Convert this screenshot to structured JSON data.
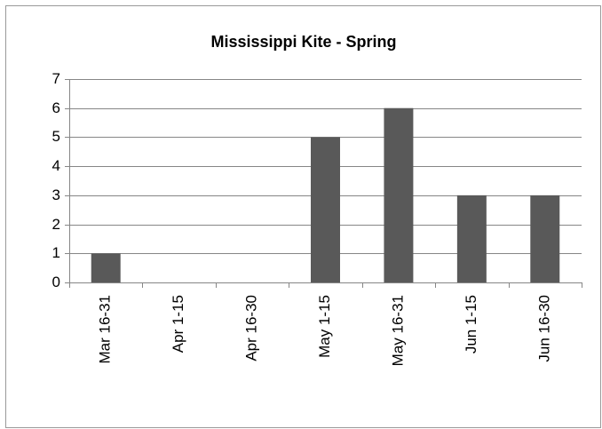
{
  "chart_data": {
    "type": "bar",
    "title": "Mississippi Kite - Spring",
    "categories": [
      "Mar 16-31",
      "Apr 1-15",
      "Apr 16-30",
      "May 1-15",
      "May 16-31",
      "Jun 1-15",
      "Jun 16-30"
    ],
    "values": [
      1,
      0,
      0,
      5,
      6,
      3,
      3
    ],
    "color": "#595959",
    "ylim": [
      0,
      7
    ],
    "yticks": [
      0,
      1,
      2,
      3,
      4,
      5,
      6,
      7
    ],
    "grid": true
  }
}
